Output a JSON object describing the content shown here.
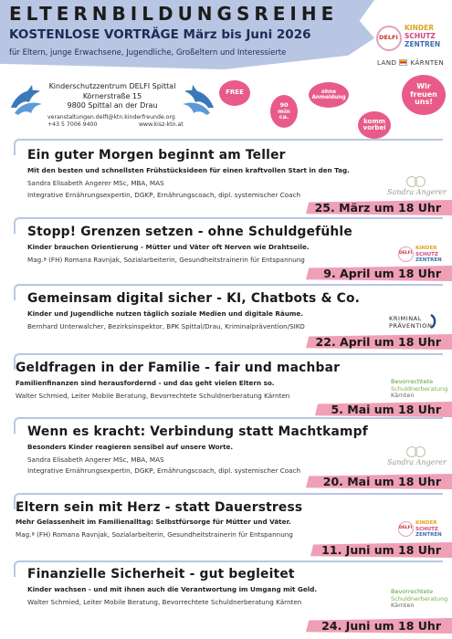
{
  "header": {
    "title": "ELTERNBILDUNGSREIHE",
    "subtitle": "KOSTENLOSE VORTRÄGE März bis Juni 2026",
    "audience": "für Eltern, junge Erwachsene, Jugendliche, Großeltern und Interessierte"
  },
  "logos": {
    "kinderschutz": {
      "delfi": "DELFI",
      "line1": "KINDER",
      "line2": "SCHUTZ",
      "line3": "ZENTREN"
    },
    "land": {
      "left": "LAND",
      "right": "KÄRNTEN"
    }
  },
  "organizer": {
    "name": "Kinderschutzzentrum DELFI Spittal",
    "street": "Körnerstraße 15",
    "city": "9800 Spittal an der Drau",
    "email": "veranstaltungen.delfi@ktn.kinderfreunde.org",
    "phone": "+43 5 7006 9400",
    "website": "www.kisz-ktn.at"
  },
  "bubbles": {
    "free": "FREE",
    "duration": "90 min ca.",
    "no_registration": "ohne Anmeldung",
    "come_by": "komm vorbei",
    "welcome": "Wir freuen uns!"
  },
  "events": [
    {
      "title": "Ein guter Morgen beginnt am Teller",
      "teaser": "Mit den besten und schnellsten Frühstücksideen für einen kraftvollen Start in den Tag.",
      "speaker_line1": "Sandra Elisabeth Angerer MSc, MBA, MAS",
      "speaker_line2": "Integrative Ernährungsexpertin, DGKP, Ernährungscoach, dipl. systemischer Coach",
      "date": "25. März um 18 Uhr",
      "logo": "Sandra Angerer"
    },
    {
      "title": "Stopp! Grenzen setzen - ohne Schuldgefühle",
      "teaser": "Kinder brauchen Orientierung - Mütter und Väter oft Nerven wie Drahtseile.",
      "speaker_line1": "Mag.ª (FH) Romana Ravnjak, Sozialarbeiterin, Gesundheitstrainerin für Entspannung",
      "speaker_line2": "",
      "date": "9. April um 18 Uhr",
      "logo": "Kinderschutz Zentren"
    },
    {
      "title": "Gemeinsam digital sicher - KI, Chatbots & Co.",
      "teaser": "Kinder und Jugendliche nutzen täglich soziale Medien und digitale Räume.",
      "speaker_line1": "Bernhard Unterwalcher, Bezirksinspektor, BPK Spittal/Drau, Kriminalprävention/SIKO",
      "speaker_line2": "",
      "date": "22. April um 18 Uhr",
      "logo_line1": "KRIMINAL",
      "logo_line2": "PRÄVENTION"
    },
    {
      "title": "Geldfragen in der Familie - fair und machbar",
      "teaser": "Familienfinanzen sind herausfordernd - und das geht vielen Eltern so.",
      "speaker_line1": "Walter Schmied, Leiter Mobile Beratung, Bevorrechtete Schuldnerberatung Kärnten",
      "speaker_line2": "",
      "date": "5. Mai um 18 Uhr",
      "logo_line1": "Bevorrechtete",
      "logo_line2": "Schuldnerberatung",
      "logo_line3": "Kärnten"
    },
    {
      "title": "Wenn es kracht: Verbindung statt Machtkampf",
      "teaser": "Besonders Kinder reagieren sensibel auf unsere Worte.",
      "speaker_line1": "Sandra Elisabeth Angerer MSc, MBA, MAS",
      "speaker_line2": "Integrative Ernährungsexpertin, DGKP, Ernährungscoach, dipl. systemischer Coach",
      "date": "20. Mai um 18 Uhr",
      "logo": "Sandra Angerer"
    },
    {
      "title": "Eltern sein mit Herz - statt Dauerstress",
      "teaser": "Mehr Gelassenheit im Familienalltag: Selbstfürsorge für Mütter und Väter.",
      "speaker_line1": "Mag.ª (FH) Romana Ravnjak, Sozialarbeiterin, Gesundheitstrainerin für Entspannung",
      "speaker_line2": "",
      "date": "11. Juni um 18 Uhr",
      "logo": "Kinderschutz Zentren"
    },
    {
      "title": "Finanzielle Sicherheit - gut begleitet",
      "teaser": "Kinder wachsen - und mit ihnen auch die Verantwortung im Umgang mit Geld.",
      "speaker_line1": "Walter Schmied, Leiter Mobile Beratung, Bevorrechtete Schuldnerberatung Kärnten",
      "speaker_line2": "",
      "date": "24. Juni um 18 Uhr",
      "logo_line1": "Bevorrechtete",
      "logo_line2": "Schuldnerberatung",
      "logo_line3": "Kärnten"
    }
  ],
  "colors": {
    "header_band": "#b8c6e3",
    "date_band": "#ef9fb6",
    "bubble": "#e85b88"
  }
}
